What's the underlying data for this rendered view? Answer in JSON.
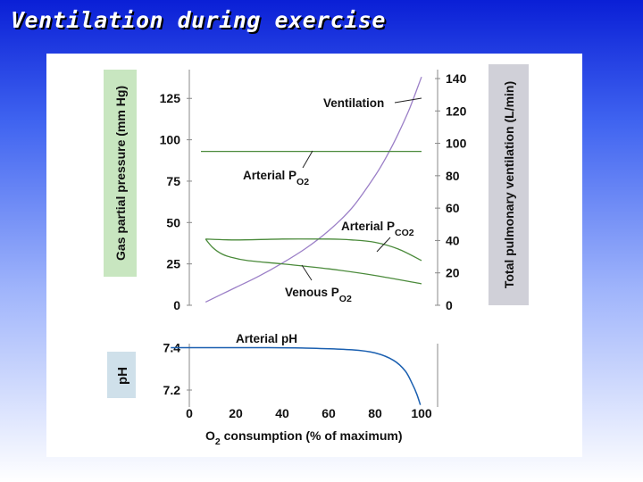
{
  "slide": {
    "title": "Ventilation during exercise"
  },
  "colors": {
    "background_top": "#0a1fd6",
    "background_bottom": "#ffffff",
    "label_box": "#c8e6c0",
    "pH_box": "#cfe0ea",
    "right_box": "#d0d0d8",
    "ventilation": "#9b7fc7",
    "green_series": "#4a8a3a",
    "pH_line": "#1a5fb0"
  },
  "chart_data": [
    {
      "type": "line",
      "title": "",
      "xlabel": "",
      "ylabel": "Gas partial pressure (mm Hg)",
      "ylim": [
        0,
        137
      ],
      "yticks": [
        "0",
        "25",
        "50",
        "75",
        "100",
        "125"
      ],
      "y2label": "Total pulmonary ventilation (L/min)",
      "y2lim": [
        0,
        140
      ],
      "y2ticks": [
        "0",
        "20",
        "40",
        "60",
        "80",
        "100",
        "120",
        "140"
      ],
      "xlim": [
        0,
        100
      ],
      "annotations": {
        "ventilation": "Ventilation",
        "arterial_po2_main": "Arterial P",
        "arterial_po2_sub": "O2",
        "arterial_pco2_main": "Arterial P",
        "arterial_pco2_sub": "CO2",
        "venous_po2_main": "Venous P",
        "venous_po2_sub": "O2"
      },
      "series": [
        {
          "name": "Ventilation",
          "axis": "right",
          "x": [
            7,
            20,
            30,
            40,
            50,
            60,
            70,
            80,
            85,
            90,
            95,
            100
          ],
          "y": [
            2,
            11,
            18,
            26,
            35,
            46,
            60,
            80,
            92,
            106,
            122,
            141
          ]
        },
        {
          "name": "Arterial PO2",
          "axis": "left",
          "x": [
            5,
            100
          ],
          "y": [
            93,
            93
          ]
        },
        {
          "name": "Arterial PCO2",
          "axis": "left",
          "x": [
            7,
            20,
            40,
            60,
            70,
            80,
            90,
            100
          ],
          "y": [
            40,
            39.5,
            40,
            40,
            39.5,
            38,
            34,
            27
          ]
        },
        {
          "name": "Venous PO2",
          "axis": "left",
          "x": [
            7,
            10,
            14,
            18,
            25,
            40,
            60,
            80,
            100
          ],
          "y": [
            40,
            35,
            31,
            29,
            27,
            25,
            22,
            18,
            13
          ]
        }
      ]
    },
    {
      "type": "line",
      "title": "",
      "xlabel_main": "O",
      "xlabel_sub": "2",
      "xlabel_rest": " consumption (% of maximum)",
      "ylabel": "pH",
      "xlim": [
        0,
        100
      ],
      "xticks": [
        "0",
        "20",
        "40",
        "60",
        "80",
        "100"
      ],
      "ylim": [
        7.12,
        7.44
      ],
      "yticks": [
        "7.2",
        "7.4"
      ],
      "annotations": {
        "arterial_ph": "Arterial pH"
      },
      "series": [
        {
          "name": "Arterial pH",
          "x": [
            -8,
            10,
            30,
            50,
            70,
            80,
            88,
            93,
            96,
            98,
            99.5
          ],
          "y": [
            7.4,
            7.4,
            7.4,
            7.398,
            7.39,
            7.375,
            7.34,
            7.29,
            7.23,
            7.18,
            7.13
          ]
        }
      ]
    }
  ]
}
